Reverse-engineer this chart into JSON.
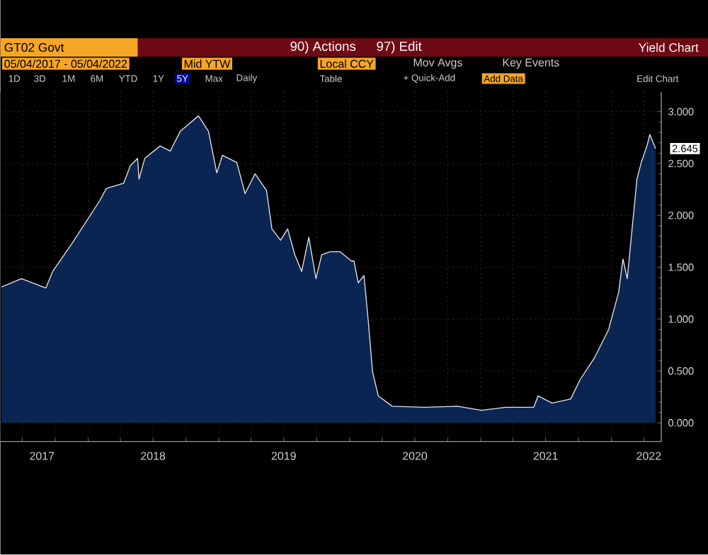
{
  "chart_data": {
    "type": "area",
    "title": "GT02 Govt",
    "subtitle": "Yield Chart",
    "annotations": [
      "90) Actions",
      "97) Edit",
      "05/04/2017 - 05/04/2022",
      "Mid YTW",
      "Local CCY",
      "Mov Avgs",
      "Key Events",
      "1D",
      "3D",
      "1M",
      "6M",
      "YTD",
      "1Y",
      "5Y",
      "Max",
      "Daily",
      "Table",
      "+ Quick-Add",
      "Add Data",
      "Edit Chart",
      {
        "text": "2.645",
        "x": "2022-05-04",
        "y": 2.645
      }
    ],
    "x": [
      "2017-05-04",
      "2017-06-29",
      "2017-09-05",
      "2017-09-24",
      "2017-11-15",
      "2018-01-05",
      "2018-02-02",
      "2018-02-21",
      "2018-04-10",
      "2018-04-29",
      "2018-05-19",
      "2018-05-23",
      "2018-06-08",
      "2018-07-21",
      "2018-08-18",
      "2018-09-15",
      "2018-11-05",
      "2018-12-03",
      "2018-12-26",
      "2019-01-11",
      "2019-02-20",
      "2019-03-15",
      "2019-04-12",
      "2019-05-14",
      "2019-05-29",
      "2019-06-22",
      "2019-07-12",
      "2019-08-01",
      "2019-08-20",
      "2019-09-09",
      "2019-09-29",
      "2019-10-15",
      "2019-11-07",
      "2019-12-05",
      "2020-01-06",
      "2020-01-13",
      "2020-01-25",
      "2020-02-10",
      "2020-02-22",
      "2020-03-05",
      "2020-03-21",
      "2020-04-29",
      "2020-07-29",
      "2020-10-28",
      "2021-01-03",
      "2021-03-11",
      "2021-05-29",
      "2021-06-10",
      "2021-07-19",
      "2021-09-09",
      "2021-10-06",
      "2021-11-15",
      "2021-12-24",
      "2022-01-21",
      "2022-02-02",
      "2022-02-14",
      "2022-03-13",
      "2022-03-25",
      "2022-04-10",
      "2022-04-18",
      "2022-05-04"
    ],
    "series": [
      {
        "color": "#0b2553",
        "values": [
          1.31,
          1.39,
          1.3,
          1.46,
          1.72,
          1.99,
          2.14,
          2.26,
          2.31,
          2.48,
          2.55,
          2.35,
          2.55,
          2.67,
          2.62,
          2.81,
          2.96,
          2.81,
          2.41,
          2.58,
          2.51,
          2.21,
          2.4,
          2.24,
          1.87,
          1.76,
          1.87,
          1.62,
          1.46,
          1.79,
          1.39,
          1.62,
          1.65,
          1.65,
          1.56,
          1.56,
          1.35,
          1.42,
          0.98,
          0.49,
          0.26,
          0.16,
          0.15,
          0.16,
          0.12,
          0.15,
          0.15,
          0.26,
          0.19,
          0.23,
          0.42,
          0.63,
          0.9,
          1.26,
          1.58,
          1.39,
          2.35,
          2.51,
          2.67,
          2.78,
          2.645
        ]
      }
    ],
    "xlim": [
      "2017-05-01",
      "2022-05-20"
    ],
    "xticks": [
      {
        "value": "2017-07-01",
        "label": null
      },
      {
        "value": "2017-08-25",
        "label": "2017"
      },
      {
        "value": "2017-10-01",
        "label": null
      },
      {
        "value": "2018-01-01",
        "label": null
      },
      {
        "value": "2018-04-01",
        "label": null
      },
      {
        "value": "2018-07-01",
        "label": "2018"
      },
      {
        "value": "2018-07-01",
        "label": null
      },
      {
        "value": "2018-10-01",
        "label": null
      },
      {
        "value": "2019-01-01",
        "label": null
      },
      {
        "value": "2019-04-01",
        "label": null
      },
      {
        "value": "2019-07-01",
        "label": "2019"
      },
      {
        "value": "2019-07-01",
        "label": null
      },
      {
        "value": "2019-10-01",
        "label": null
      },
      {
        "value": "2020-01-01",
        "label": null
      },
      {
        "value": "2020-04-01",
        "label": null
      },
      {
        "value": "2020-07-01",
        "label": "2020"
      },
      {
        "value": "2020-07-01",
        "label": null
      },
      {
        "value": "2020-10-01",
        "label": null
      },
      {
        "value": "2021-01-01",
        "label": null
      },
      {
        "value": "2021-04-01",
        "label": null
      },
      {
        "value": "2021-07-01",
        "label": "2021"
      },
      {
        "value": "2021-07-01",
        "label": null
      },
      {
        "value": "2021-10-01",
        "label": null
      },
      {
        "value": "2022-01-01",
        "label": null
      },
      {
        "value": "2022-04-01",
        "label": null
      },
      {
        "value": "2022-04-15",
        "label": "2022"
      }
    ],
    "ylim": [
      -0.18,
      3.19
    ],
    "yticks": [
      {
        "value": 0,
        "label": "0.000"
      },
      {
        "value": 0.5,
        "label": "0.500"
      },
      {
        "value": 1,
        "label": "1.000"
      },
      {
        "value": 1.5,
        "label": "1.500"
      },
      {
        "value": 2,
        "label": "2.000"
      },
      {
        "value": 2.5,
        "label": "2.500"
      },
      {
        "value": 3,
        "label": "3.000"
      }
    ],
    "grid": true
  }
}
